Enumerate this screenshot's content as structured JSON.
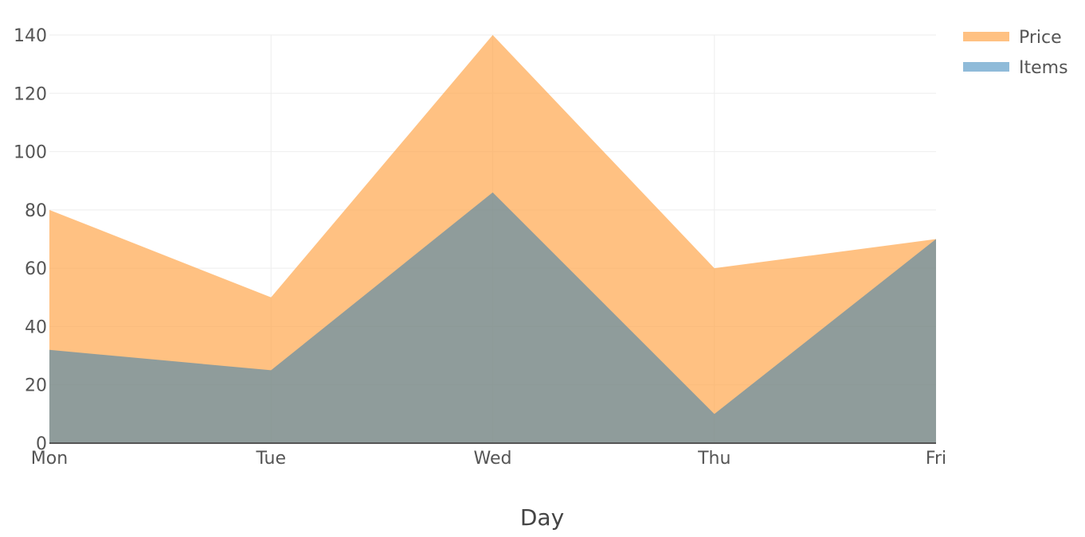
{
  "chart_data": {
    "type": "area",
    "categories": [
      "Mon",
      "Tue",
      "Wed",
      "Thu",
      "Fri"
    ],
    "series": [
      {
        "name": "Price",
        "values": [
          80,
          50,
          140,
          60,
          70
        ],
        "color": "#ffa64d"
      },
      {
        "name": "Items",
        "values": [
          32,
          25,
          86,
          10,
          70
        ],
        "color": "#1f77b4"
      }
    ],
    "xlabel": "Day",
    "ylabel": "",
    "ylim": [
      0,
      140
    ],
    "yticks": [
      0,
      20,
      40,
      60,
      80,
      100,
      120,
      140
    ],
    "grid": true,
    "legend_position": "top-right"
  }
}
